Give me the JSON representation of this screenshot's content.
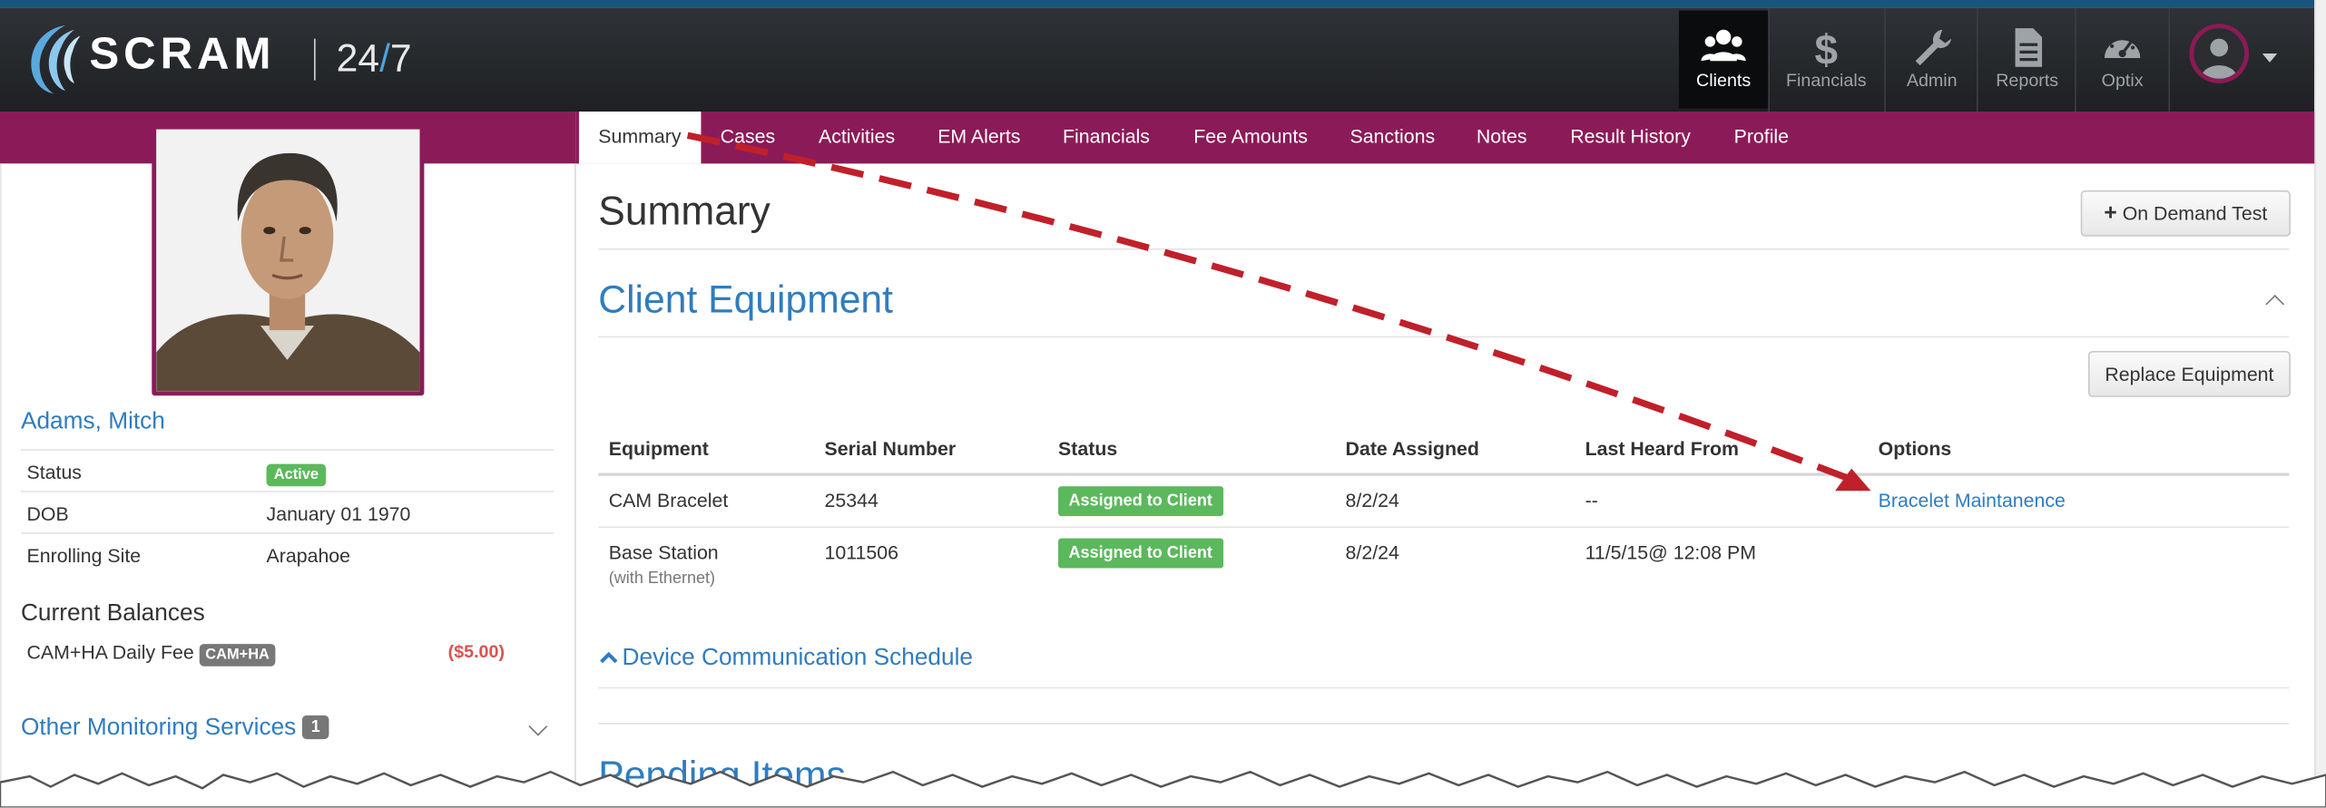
{
  "header": {
    "logo_text": "SCRAM",
    "logo_suffix_a": "24",
    "logo_suffix_slash": "/",
    "logo_suffix_b": "7",
    "nav": [
      {
        "label": "Clients",
        "icon": "users-icon",
        "active": true
      },
      {
        "label": "Financials",
        "icon": "dollar-icon",
        "active": false
      },
      {
        "label": "Admin",
        "icon": "wrench-icon",
        "active": false
      },
      {
        "label": "Reports",
        "icon": "document-icon",
        "active": false
      },
      {
        "label": "Optix",
        "icon": "dashboard-gauge-icon",
        "active": false
      }
    ],
    "user_icon": "user-avatar-icon"
  },
  "tabs": [
    "Summary",
    "Cases",
    "Activities",
    "EM Alerts",
    "Financials",
    "Fee Amounts",
    "Sanctions",
    "Notes",
    "Result History",
    "Profile"
  ],
  "client": {
    "name": "Adams, Mitch",
    "fields": [
      {
        "label": "Status",
        "value": "Active"
      },
      {
        "label": "DOB",
        "value": "January 01 1970"
      },
      {
        "label": "Enrolling Site",
        "value": "Arapahoe"
      }
    ],
    "balances_title": "Current Balances",
    "balance": {
      "label": "CAM+HA Daily Fee",
      "tag": "CAM+HA",
      "amount": "($5.00)"
    },
    "other_services": {
      "label": "Other Monitoring Services",
      "count": "1"
    }
  },
  "main": {
    "title": "Summary",
    "on_demand_button": "On Demand Test",
    "equipment_title": "Client Equipment",
    "replace_button": "Replace Equipment",
    "columns": [
      "Equipment",
      "Serial Number",
      "Status",
      "Date Assigned",
      "Last Heard From",
      "Options"
    ],
    "rows": [
      {
        "equipment": "CAM Bracelet",
        "sub": "",
        "serial": "25344",
        "status": "Assigned to Client",
        "date": "8/2/24",
        "last_heard": "--",
        "option": "Bracelet Maintanence"
      },
      {
        "equipment": "Base Station",
        "sub": "(with Ethernet)",
        "serial": "1011506",
        "status": "Assigned to Client",
        "date": "8/2/24",
        "last_heard": "11/5/15@ 12:08 PM",
        "option": ""
      }
    ],
    "device_schedule": "Device Communication Schedule",
    "pending_title": "Pending Items"
  },
  "colors": {
    "brand_maroon": "#8b1b58",
    "link_blue": "#2f7cc0",
    "success_green": "#5cb85c",
    "annotation_red": "#c0202a"
  }
}
